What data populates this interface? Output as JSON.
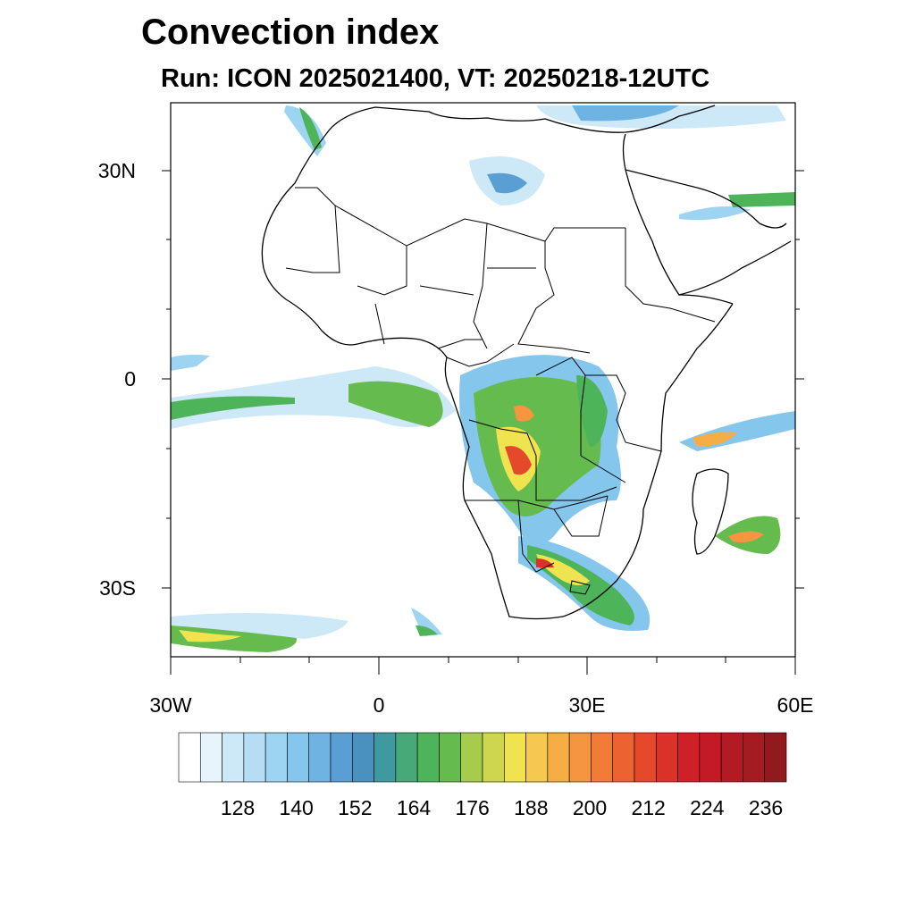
{
  "title": "Convection index",
  "subtitle": "Run: ICON 2025021400,  VT: 20250218-12UTC",
  "map": {
    "region": "Africa",
    "lon_range": [
      -30,
      60
    ],
    "lat_range": [
      -40,
      40
    ],
    "lat_tick_labels": [
      "30N",
      "0",
      "30S"
    ],
    "lon_tick_labels": [
      "30W",
      "0",
      "30E",
      "60E"
    ],
    "ocean_color": "#ffffff",
    "coastline_color": "#000000"
  },
  "colorbar": {
    "labels": [
      "128",
      "140",
      "152",
      "164",
      "176",
      "188",
      "200",
      "212",
      "224",
      "236"
    ],
    "colors": [
      "#ffffff",
      "#e8f4fb",
      "#cde9f8",
      "#b5def5",
      "#9dd4f2",
      "#85c6ec",
      "#6eb3e2",
      "#5a9fd4",
      "#4a91c0",
      "#3f9aa0",
      "#47a878",
      "#4db45a",
      "#66bb4e",
      "#a6cc4d",
      "#cdd64e",
      "#f0e350",
      "#f7c84f",
      "#f7ad46",
      "#f69540",
      "#f17b37",
      "#ec6331",
      "#e4492c",
      "#da3129",
      "#cf2028",
      "#c41a26",
      "#b21b24",
      "#a41c22",
      "#901a1d"
    ]
  }
}
